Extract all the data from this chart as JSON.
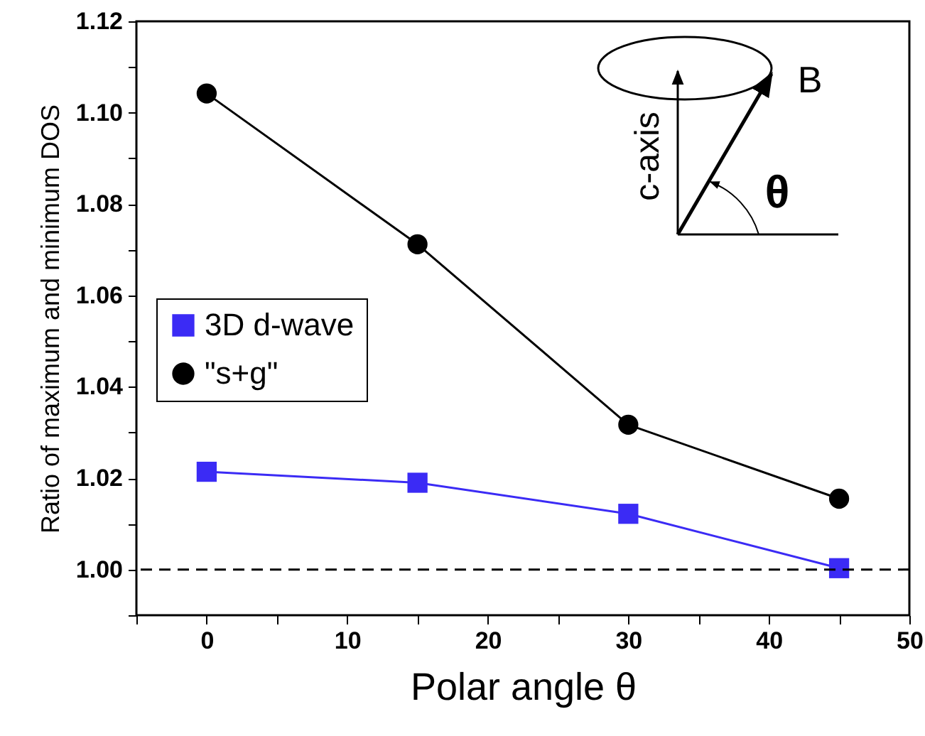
{
  "chart_data": {
    "type": "line",
    "xlabel": "Polar angle θ",
    "ylabel": "Ratio of maximum and minimum DOS",
    "x": [
      0,
      15,
      30,
      45
    ],
    "series": [
      {
        "name": "3D d-wave",
        "color": "#3b2bf5",
        "marker": "square",
        "values": [
          1.0214,
          1.019,
          1.0122,
          1.0003
        ]
      },
      {
        "name": "\"s+g\"",
        "color": "#000000",
        "marker": "circle",
        "values": [
          1.1042,
          1.0712,
          1.0317,
          1.0155
        ]
      }
    ],
    "xlim": [
      -5,
      50
    ],
    "xticks": [
      {
        "value": -5,
        "label": null
      },
      0,
      {
        "value": 5,
        "label": null
      },
      10,
      {
        "value": 15,
        "label": null
      },
      20,
      {
        "value": 25,
        "label": null
      },
      30,
      {
        "value": 35,
        "label": null
      },
      40,
      {
        "value": 45,
        "label": null
      },
      50
    ],
    "ylim": [
      0.99,
      1.12
    ],
    "yticks": [
      {
        "value": 0.99,
        "label": null
      },
      {
        "value": 1.0,
        "label": "1.00"
      },
      {
        "value": 1.01,
        "label": null
      },
      1.02,
      {
        "value": 1.03,
        "label": null
      },
      1.04,
      {
        "value": 1.05,
        "label": null
      },
      1.06,
      {
        "value": 1.07,
        "label": null
      },
      1.08,
      {
        "value": 1.09,
        "label": null
      },
      {
        "value": 1.1,
        "label": "1.10"
      },
      {
        "value": 1.11,
        "label": null
      },
      1.12
    ],
    "ref_lines": [
      {
        "axis": "y",
        "value": 1.0,
        "line_style": "dashed",
        "color": "#000000"
      }
    ],
    "legend": "left",
    "grid": false,
    "annotations": [
      "c-axis",
      "B",
      "θ"
    ]
  }
}
